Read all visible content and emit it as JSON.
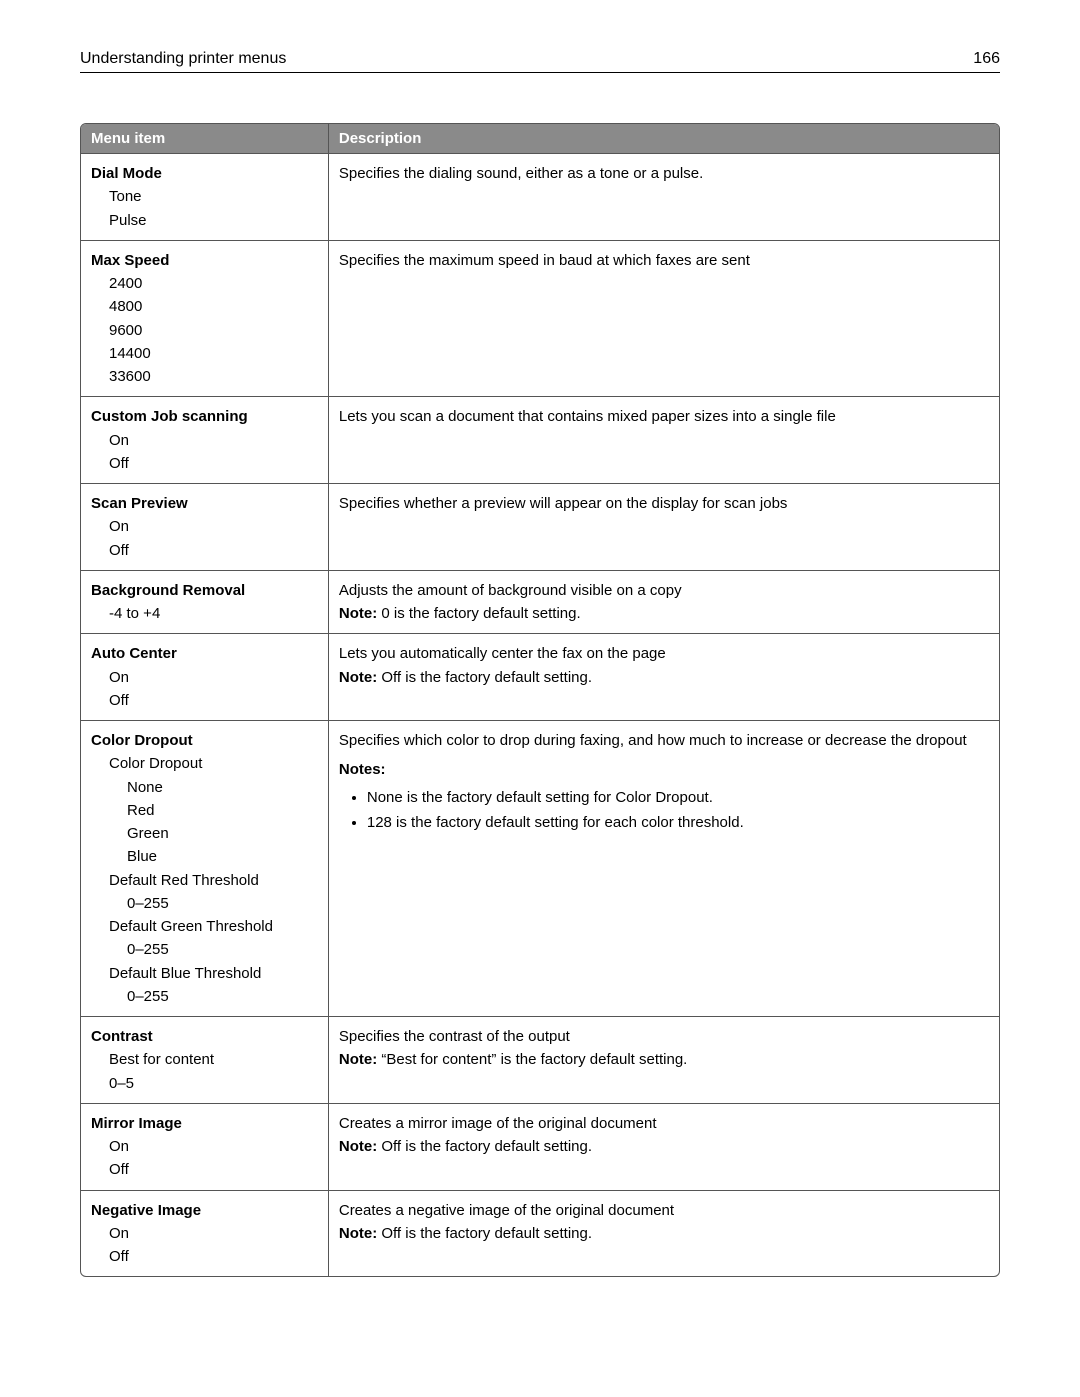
{
  "header": {
    "title": "Understanding printer menus",
    "page_number": "166"
  },
  "table": {
    "columns": {
      "menu_item": "Menu item",
      "description": "Description"
    },
    "rows": [
      {
        "title": "Dial Mode",
        "options": [
          {
            "text": "Tone",
            "level": 1
          },
          {
            "text": "Pulse",
            "level": 1
          }
        ],
        "desc": "Specifies the dialing sound, either as a tone or a pulse.",
        "note": null,
        "notes_list": null
      },
      {
        "title": "Max Speed",
        "options": [
          {
            "text": "2400",
            "level": 1
          },
          {
            "text": "4800",
            "level": 1
          },
          {
            "text": "9600",
            "level": 1
          },
          {
            "text": "14400",
            "level": 1
          },
          {
            "text": "33600",
            "level": 1
          }
        ],
        "desc": "Specifies the maximum speed in baud at which faxes are sent",
        "note": null,
        "notes_list": null
      },
      {
        "title": "Custom Job scanning",
        "options": [
          {
            "text": "On",
            "level": 1
          },
          {
            "text": "Off",
            "level": 1
          }
        ],
        "desc": "Lets you scan a document that contains mixed paper sizes into a single file",
        "note": null,
        "notes_list": null
      },
      {
        "title": "Scan Preview",
        "options": [
          {
            "text": "On",
            "level": 1
          },
          {
            "text": "Off",
            "level": 1
          }
        ],
        "desc": "Specifies whether a preview will appear on the display for scan jobs",
        "note": null,
        "notes_list": null
      },
      {
        "title": "Background Removal",
        "options": [
          {
            "text": "-4 to +4",
            "level": 1
          }
        ],
        "desc": "Adjusts the amount of background visible on a copy",
        "note": "0 is the factory default setting.",
        "notes_list": null
      },
      {
        "title": "Auto Center",
        "options": [
          {
            "text": "On",
            "level": 1
          },
          {
            "text": "Off",
            "level": 1
          }
        ],
        "desc": "Lets you automatically center the fax on the page",
        "note": "Off is the factory default setting.",
        "notes_list": null
      },
      {
        "title": "Color Dropout",
        "options": [
          {
            "text": "Color Dropout",
            "level": 1
          },
          {
            "text": "None",
            "level": 2
          },
          {
            "text": "Red",
            "level": 2
          },
          {
            "text": "Green",
            "level": 2
          },
          {
            "text": "Blue",
            "level": 2
          },
          {
            "text": "Default Red Threshold",
            "level": 1
          },
          {
            "text": "0–255",
            "level": 2
          },
          {
            "text": "Default Green Threshold",
            "level": 1
          },
          {
            "text": "0–255",
            "level": 2
          },
          {
            "text": "Default Blue Threshold",
            "level": 1
          },
          {
            "text": "0–255",
            "level": 2
          }
        ],
        "desc": "Specifies which color to drop during faxing, and how much to increase or decrease the dropout",
        "note": null,
        "notes_heading": "Notes:",
        "notes_list": [
          "None is the factory default setting for Color Dropout.",
          "128 is the factory default setting for each color threshold."
        ]
      },
      {
        "title": "Contrast",
        "options": [
          {
            "text": "Best for content",
            "level": 1
          },
          {
            "text": "0–5",
            "level": 1
          }
        ],
        "desc": "Specifies the contrast of the output",
        "note": "“Best for content” is the factory default setting.",
        "notes_list": null
      },
      {
        "title": "Mirror Image",
        "options": [
          {
            "text": "On",
            "level": 1
          },
          {
            "text": "Off",
            "level": 1
          }
        ],
        "desc": "Creates a mirror image of the original document",
        "note": "Off is the factory default setting.",
        "notes_list": null
      },
      {
        "title": "Negative Image",
        "options": [
          {
            "text": "On",
            "level": 1
          },
          {
            "text": "Off",
            "level": 1
          }
        ],
        "desc": "Creates a negative image of the original document",
        "note": "Off is the factory default setting.",
        "notes_list": null
      }
    ]
  },
  "labels": {
    "note_prefix": "Note: "
  }
}
